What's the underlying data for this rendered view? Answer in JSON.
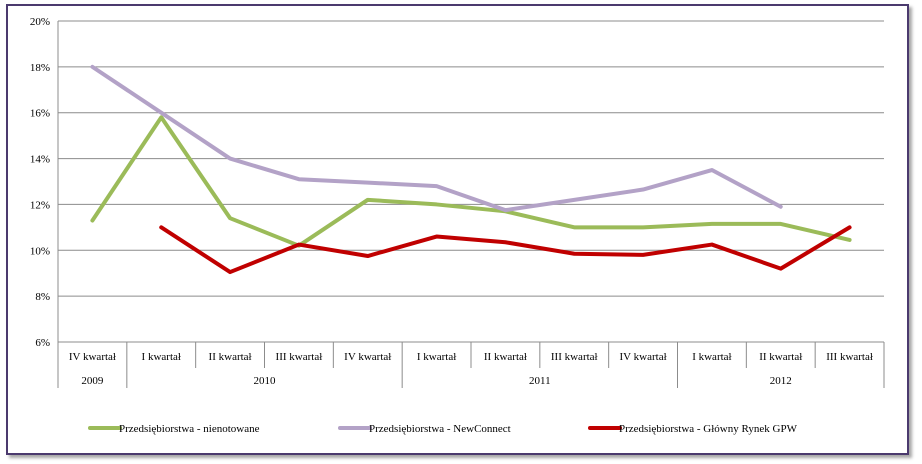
{
  "chart_data": {
    "type": "line",
    "title": "",
    "xlabel": "",
    "ylabel": "",
    "ylim": [
      6,
      20
    ],
    "yticks": [
      6,
      8,
      10,
      12,
      14,
      16,
      18,
      20
    ],
    "ytick_labels": [
      "6%",
      "8%",
      "10%",
      "12%",
      "14%",
      "16%",
      "18%",
      "20%"
    ],
    "grid": true,
    "legend_position": "bottom",
    "categories": [
      "IV kwartał",
      "I kwartał",
      "II kwartał",
      "III kwartał",
      "IV kwartał",
      "I kwartał",
      "II kwartał",
      "III kwartał",
      "IV kwartał",
      "I kwartał",
      "II kwartał",
      "III kwartał"
    ],
    "year_groups": [
      {
        "label": "2009",
        "start": 0,
        "end": 0
      },
      {
        "label": "2010",
        "start": 1,
        "end": 4
      },
      {
        "label": "2011",
        "start": 5,
        "end": 8
      },
      {
        "label": "2012",
        "start": 9,
        "end": 11
      }
    ],
    "series": [
      {
        "name": "Przedsiębiorstwa - nienotowane",
        "color": "#9bbb59",
        "values": [
          11.3,
          15.8,
          11.4,
          10.2,
          12.2,
          12.0,
          11.7,
          11.0,
          11.0,
          11.15,
          11.15,
          10.45
        ]
      },
      {
        "name": "Przedsiębiorstwa - NewConnect",
        "color": "#b3a2c7",
        "values": [
          18.0,
          16.0,
          14.0,
          13.1,
          12.95,
          12.8,
          11.75,
          12.2,
          12.65,
          13.5,
          11.9,
          null
        ]
      },
      {
        "name": "Przedsiębiorstwa - Główny Rynek GPW",
        "color": "#c00000",
        "values": [
          null,
          11.0,
          9.05,
          10.25,
          9.75,
          10.6,
          10.35,
          9.85,
          9.8,
          10.25,
          9.2,
          11.0
        ]
      }
    ]
  }
}
